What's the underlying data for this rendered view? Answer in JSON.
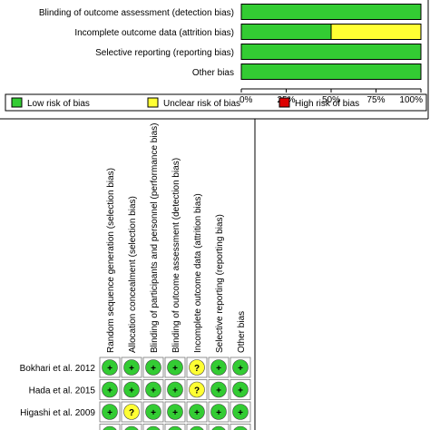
{
  "chart_data": [
    {
      "type": "bar",
      "orientation": "horizontal",
      "stacked": true,
      "percent_axis": true,
      "categories": [
        "Blinding of outcome assessment (detection bias)",
        "Incomplete outcome data (attrition bias)",
        "Selective reporting (reporting bias)",
        "Other bias"
      ],
      "series": [
        {
          "name": "Low risk of bias",
          "color": "#33cc33",
          "values": [
            100,
            50,
            100,
            100
          ]
        },
        {
          "name": "Unclear risk of bias",
          "color": "#ffff33",
          "values": [
            0,
            50,
            0,
            0
          ]
        },
        {
          "name": "High risk of bias",
          "color": "#dd0000",
          "values": [
            0,
            0,
            0,
            0
          ]
        }
      ],
      "xticks": [
        "0%",
        "25%",
        "50%",
        "75%",
        "100%"
      ],
      "xlim": [
        0,
        100
      ],
      "legend_position": "bottom"
    },
    {
      "type": "table",
      "columns": [
        "Random sequence generation (selection bias)",
        "Allocation concealment (selection bias)",
        "Blinding of participants and personnel (performance bias)",
        "Blinding of outcome assessment (detection bias)",
        "Incomplete outcome data (attrition bias)",
        "Selective reporting (reporting bias)",
        "Other bias"
      ],
      "rows": [
        {
          "study": "Bokhari et al. 2012",
          "judgements": [
            "+",
            "+",
            "+",
            "+",
            "?",
            "+",
            "+"
          ]
        },
        {
          "study": "Hada et al. 2015",
          "judgements": [
            "+",
            "+",
            "+",
            "+",
            "?",
            "+",
            "+"
          ]
        },
        {
          "study": "Higashi et al. 2009",
          "judgements": [
            "+",
            "?",
            "+",
            "+",
            "+",
            "+",
            "+"
          ]
        },
        {
          "study": "",
          "judgements": [
            "+",
            "+",
            "+",
            "+",
            "+",
            "+",
            "+"
          ]
        }
      ],
      "symbol_colors": {
        "+": "#33cc33",
        "?": "#ffff33",
        "-": "#dd0000"
      }
    }
  ]
}
